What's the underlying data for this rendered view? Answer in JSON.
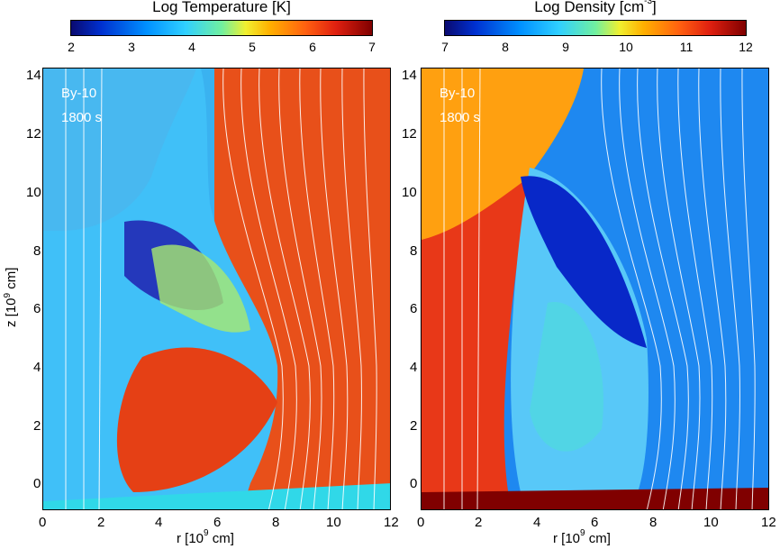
{
  "left_panel": {
    "colorbar": {
      "title": "Log Temperature [K]",
      "ticks": [
        "2",
        "3",
        "4",
        "5",
        "6",
        "7"
      ]
    },
    "label_case": "By-10",
    "label_time": "1800 s"
  },
  "right_panel": {
    "colorbar": {
      "title_main": "Log Density [cm",
      "title_exp": "-3",
      "title_close": "]",
      "ticks": [
        "7",
        "8",
        "9",
        "10",
        "11",
        "12"
      ]
    },
    "label_case": "By-10",
    "label_time": "1800 s"
  },
  "x_axis": {
    "label_main": "r [10",
    "label_exp": "9",
    "label_unit": " cm]",
    "ticks": [
      "0",
      "2",
      "4",
      "6",
      "8",
      "10",
      "12"
    ]
  },
  "y_axis": {
    "label_main": "z [10",
    "label_exp": "9",
    "label_unit": " cm]",
    "ticks": [
      "0",
      "2",
      "4",
      "6",
      "8",
      "10",
      "12",
      "14"
    ]
  }
}
